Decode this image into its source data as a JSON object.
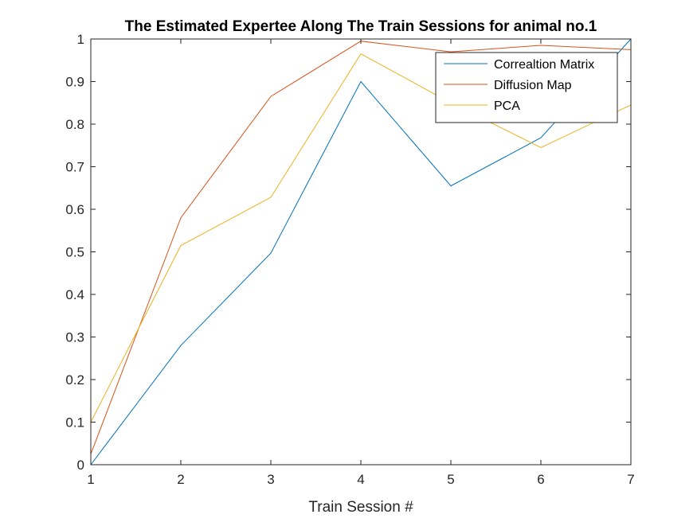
{
  "chart_data": {
    "type": "line",
    "title": "The Estimated Expertee Along The Train Sessions for animal no.1",
    "xlabel": "Train Session #",
    "ylabel": "",
    "xlim": [
      1,
      7
    ],
    "ylim": [
      0,
      1
    ],
    "x": [
      1,
      2,
      3,
      4,
      5,
      6,
      7
    ],
    "xticks": [
      1,
      2,
      3,
      4,
      5,
      6,
      7
    ],
    "yticks": [
      0,
      0.1,
      0.2,
      0.3,
      0.4,
      0.5,
      0.6,
      0.7,
      0.8,
      0.9,
      1
    ],
    "grid": false,
    "legend_position": "top-right",
    "series": [
      {
        "name": "Correaltion Matrix",
        "color": "#0072BD",
        "values": [
          0.0,
          0.28,
          0.497,
          0.9,
          0.655,
          0.768,
          1.0
        ]
      },
      {
        "name": "Diffusion Map",
        "color": "#D95319",
        "values": [
          0.025,
          0.58,
          0.865,
          0.995,
          0.97,
          0.985,
          0.975
        ]
      },
      {
        "name": "PCA",
        "color": "#EDB120",
        "values": [
          0.1,
          0.515,
          0.628,
          0.965,
          0.85,
          0.745,
          0.845
        ]
      }
    ]
  }
}
